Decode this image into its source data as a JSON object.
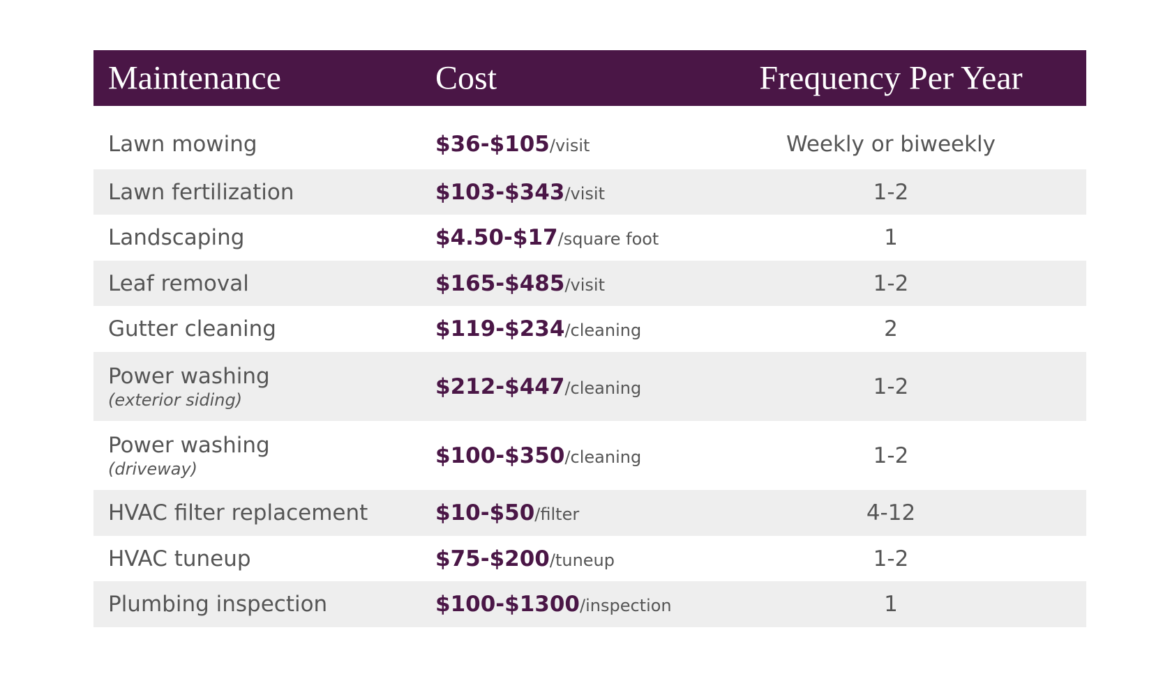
{
  "header": [
    "Maintenance",
    "Cost",
    "Frequency Per Year"
  ],
  "rows": [
    {
      "maintenance": "Lawn mowing",
      "cost": "$36-$105",
      "unit": "/visit",
      "frequency": "Weekly or biweekly"
    },
    {
      "maintenance": "Lawn fertilization",
      "cost": "$103-$343",
      "unit": "/visit",
      "frequency": "1-2"
    },
    {
      "maintenance": "Landscaping",
      "cost": "$4.50-$17",
      "unit": "/square foot",
      "frequency": "1"
    },
    {
      "maintenance": "Leaf removal",
      "cost": "$165-$485",
      "unit": "/visit",
      "frequency": "1-2"
    },
    {
      "maintenance": "Gutter cleaning",
      "cost": "$119-$234",
      "unit": "/cleaning",
      "frequency": "2"
    },
    {
      "maintenance": "Power washing",
      "note": "(exterior siding)",
      "cost": "$212-$447",
      "unit": "/cleaning",
      "frequency": "1-2"
    },
    {
      "maintenance": "Power washing",
      "note": "(driveway)",
      "cost": "$100-$350",
      "unit": "/cleaning",
      "frequency": "1-2"
    },
    {
      "maintenance": "HVAC filter replacement",
      "cost": "$10-$50",
      "unit": "/filter",
      "frequency": "4-12"
    },
    {
      "maintenance": "HVAC tuneup",
      "cost": "$75-$200",
      "unit": "/tuneup",
      "frequency": "1-2"
    },
    {
      "maintenance": "Plumbing inspection",
      "cost": "$100-$1300",
      "unit": "/inspection",
      "frequency": "1"
    }
  ]
}
